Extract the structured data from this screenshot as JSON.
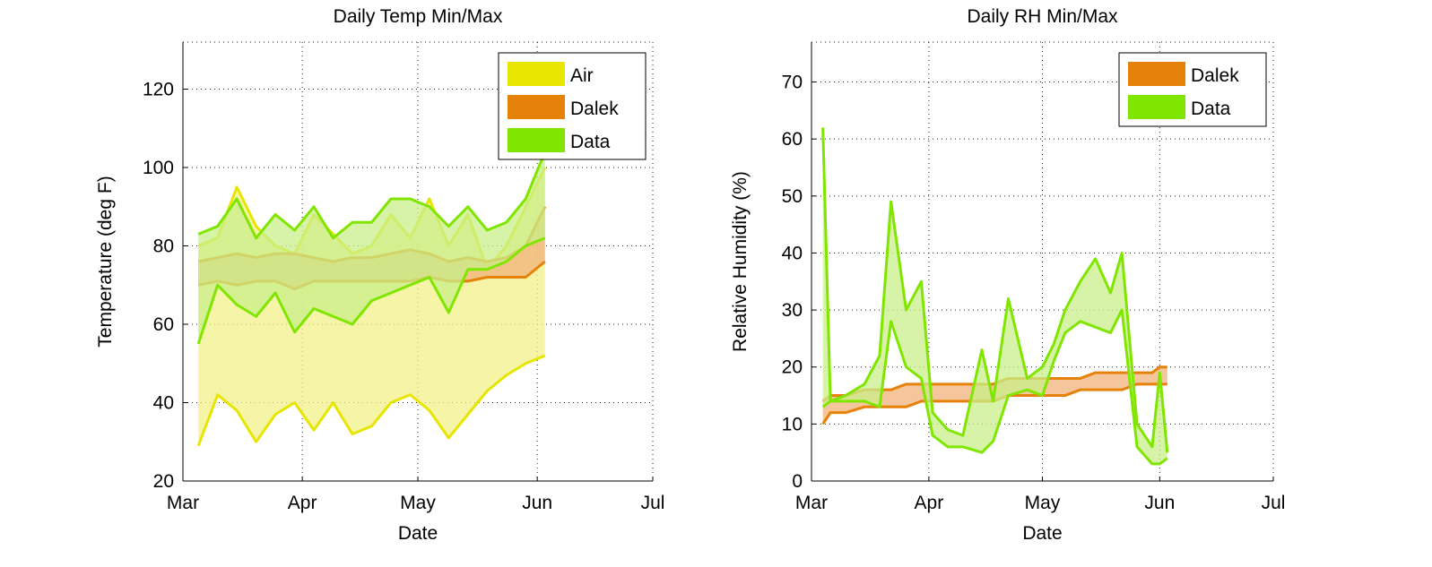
{
  "chart_data": [
    {
      "type": "area",
      "title": "Daily Temp Min/Max",
      "xlabel": "Date",
      "ylabel": "Temperature (deg F)",
      "x_ticks": [
        "Mar",
        "Apr",
        "May",
        "Jun",
        "Jul"
      ],
      "x_tick_dates": [
        "2013-03-01",
        "2013-04-01",
        "2013-05-01",
        "2013-06-01",
        "2013-07-01"
      ],
      "xlim": [
        "2013-03-01",
        "2013-07-01"
      ],
      "ylim": [
        20,
        132
      ],
      "y_ticks": [
        20,
        40,
        60,
        80,
        100,
        120
      ],
      "grid": true,
      "legend_position": "top-right",
      "x": [
        "2013-03-05",
        "2013-03-10",
        "2013-03-15",
        "2013-03-20",
        "2013-03-25",
        "2013-03-30",
        "2013-04-04",
        "2013-04-09",
        "2013-04-14",
        "2013-04-19",
        "2013-04-24",
        "2013-04-29",
        "2013-05-04",
        "2013-05-09",
        "2013-05-14",
        "2013-05-19",
        "2013-05-24",
        "2013-05-29",
        "2013-06-03"
      ],
      "series": [
        {
          "name": "Air",
          "color": "#e6e600",
          "fill": "#f2f08a",
          "min": [
            29,
            42,
            38,
            30,
            37,
            40,
            33,
            40,
            32,
            34,
            40,
            42,
            38,
            31,
            37,
            43,
            47,
            50,
            52
          ],
          "max": [
            80,
            82,
            95,
            85,
            80,
            78,
            88,
            83,
            78,
            80,
            88,
            82,
            92,
            80,
            88,
            74,
            80,
            90,
            100
          ]
        },
        {
          "name": "Dalek",
          "color": "#e6820a",
          "fill": "#f2b27a",
          "min": [
            70,
            71,
            70,
            71,
            71,
            69,
            71,
            71,
            71,
            71,
            71,
            71,
            72,
            71,
            71,
            72,
            72,
            72,
            76
          ],
          "max": [
            76,
            77,
            78,
            77,
            78,
            78,
            77,
            76,
            77,
            77,
            78,
            79,
            78,
            76,
            77,
            76,
            77,
            80,
            90
          ]
        },
        {
          "name": "Data",
          "color": "#80e600",
          "fill": "#c8ef8a",
          "min": [
            55,
            70,
            65,
            62,
            68,
            58,
            64,
            62,
            60,
            66,
            68,
            70,
            72,
            63,
            74,
            74,
            76,
            80,
            82
          ],
          "max": [
            83,
            85,
            92,
            82,
            88,
            84,
            90,
            82,
            86,
            86,
            92,
            92,
            90,
            85,
            90,
            84,
            86,
            92,
            104
          ]
        }
      ]
    },
    {
      "type": "area",
      "title": "Daily RH Min/Max",
      "xlabel": "Date",
      "ylabel": "Relative Humidity (%)",
      "x_ticks": [
        "Mar",
        "Apr",
        "May",
        "Jun",
        "Jul"
      ],
      "x_tick_dates": [
        "2013-03-01",
        "2013-04-01",
        "2013-05-01",
        "2013-06-01",
        "2013-07-01"
      ],
      "xlim": [
        "2013-03-01",
        "2013-07-01"
      ],
      "ylim": [
        0,
        77
      ],
      "y_ticks": [
        0,
        10,
        20,
        30,
        40,
        50,
        60,
        70
      ],
      "grid": true,
      "legend_position": "top-right",
      "x": [
        "2013-03-04",
        "2013-03-06",
        "2013-03-10",
        "2013-03-15",
        "2013-03-19",
        "2013-03-22",
        "2013-03-26",
        "2013-03-30",
        "2013-04-02",
        "2013-04-06",
        "2013-04-10",
        "2013-04-15",
        "2013-04-18",
        "2013-04-22",
        "2013-04-27",
        "2013-05-01",
        "2013-05-04",
        "2013-05-07",
        "2013-05-11",
        "2013-05-15",
        "2013-05-19",
        "2013-05-22",
        "2013-05-26",
        "2013-05-30",
        "2013-06-01",
        "2013-06-03"
      ],
      "series": [
        {
          "name": "Dalek",
          "color": "#e6820a",
          "fill": "#f2b27a",
          "min": [
            10,
            12,
            12,
            13,
            13,
            13,
            13,
            14,
            14,
            14,
            14,
            14,
            14,
            15,
            15,
            15,
            15,
            15,
            16,
            16,
            16,
            16,
            17,
            17,
            17,
            17
          ],
          "max": [
            14,
            15,
            15,
            16,
            16,
            16,
            17,
            17,
            17,
            17,
            17,
            17,
            17,
            18,
            18,
            18,
            18,
            18,
            18,
            19,
            19,
            19,
            19,
            19,
            20,
            20
          ]
        },
        {
          "name": "Data",
          "color": "#80e600",
          "fill": "#c8ef8a",
          "min": [
            13,
            14,
            14,
            14,
            13,
            28,
            20,
            18,
            8,
            6,
            6,
            5,
            7,
            15,
            16,
            15,
            21,
            26,
            28,
            27,
            26,
            30,
            6,
            3,
            3,
            4
          ],
          "max": [
            62,
            14,
            15,
            17,
            22,
            49,
            30,
            35,
            12,
            9,
            8,
            23,
            14,
            32,
            18,
            20,
            24,
            30,
            35,
            39,
            33,
            40,
            10,
            6,
            19,
            5
          ]
        }
      ]
    }
  ]
}
